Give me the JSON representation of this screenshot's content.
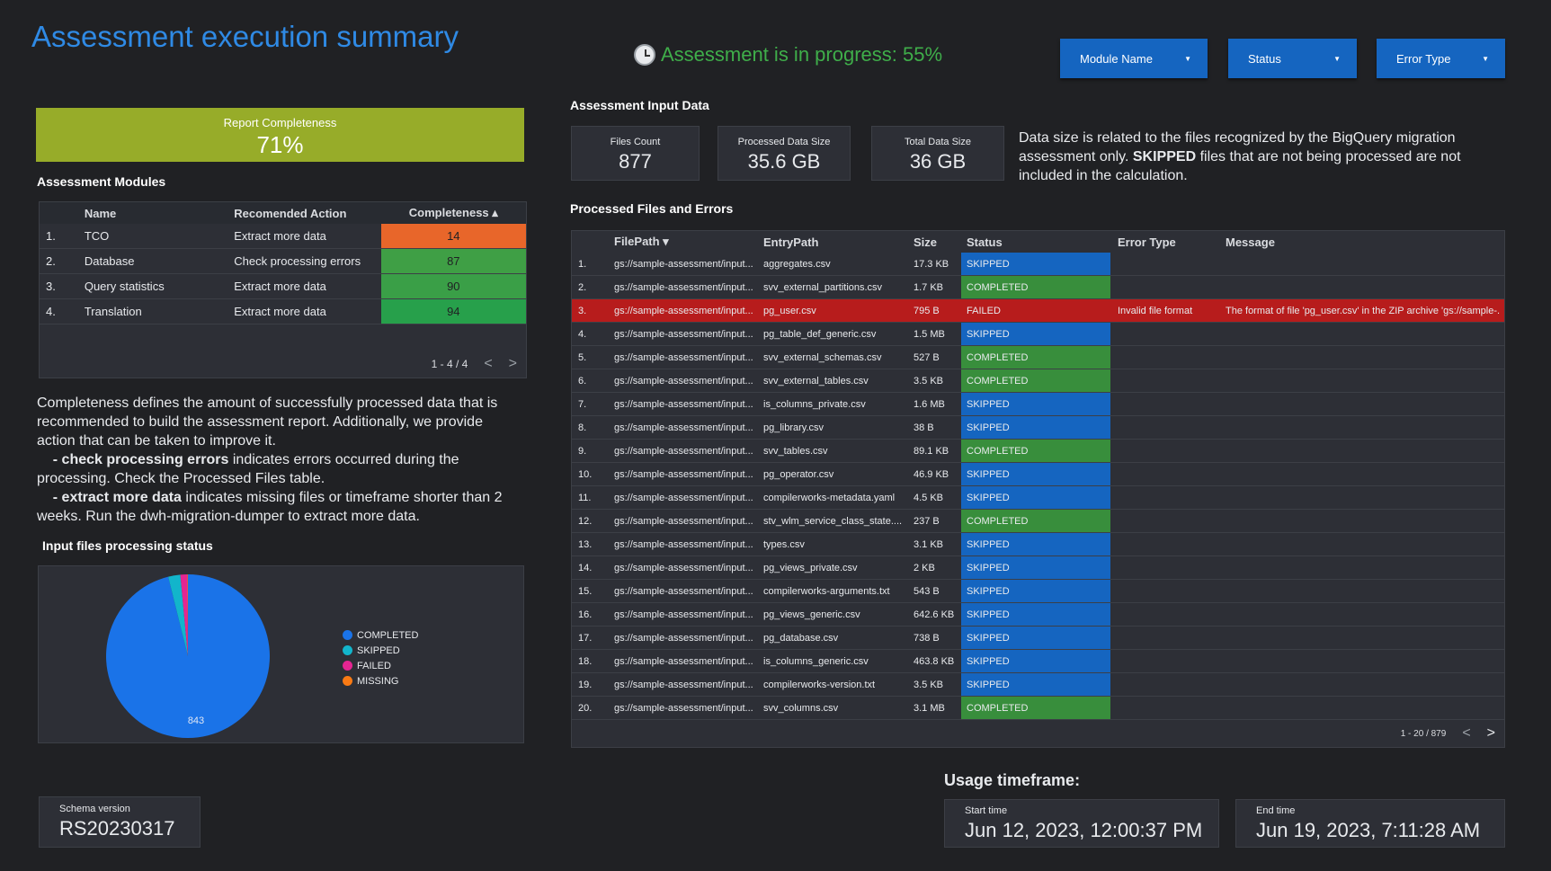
{
  "header": {
    "title": "Assessment execution summary",
    "progress": "Assessment is in progress: 55%",
    "progress_percent": 55,
    "filters": [
      {
        "label": "Module Name"
      },
      {
        "label": "Status"
      },
      {
        "label": "Error Type"
      }
    ]
  },
  "report": {
    "title": "Report Completeness",
    "value": "71%"
  },
  "modules": {
    "title": "Assessment Modules",
    "headers": [
      "Name",
      "Recomended Action",
      "Completeness ▴"
    ],
    "rows": [
      {
        "i": "1.",
        "name": "TCO",
        "action": "Extract more data",
        "value": "14",
        "color": "#e8662a"
      },
      {
        "i": "2.",
        "name": "Database",
        "action": "Check processing errors",
        "value": "87",
        "color": "#3f9f45"
      },
      {
        "i": "3.",
        "name": "Query statistics",
        "action": "Extract more data",
        "value": "90",
        "color": "#3a9f47"
      },
      {
        "i": "4.",
        "name": "Translation",
        "action": "Extract more data",
        "value": "94",
        "color": "#27a04b"
      }
    ],
    "pager": "1 - 4 / 4"
  },
  "explain": {
    "p1": "Completeness defines the amount of successfully processed data that is recommended to build the assessment report. Additionally, we provide action that can be taken to improve it.",
    "b1": "- check processing errors",
    "t1": " indicates errors occurred during the processing. Check the Processed Files table.",
    "b2": "- extract more data",
    "t2": " indicates missing files or timeframe shorter than 2 weeks. Run the dwh-migration-dumper to extract more data."
  },
  "chart_data": {
    "type": "pie",
    "title": "Input files processing status",
    "legend_position": "right",
    "slices": [
      {
        "name": "COMPLETED",
        "value": 843,
        "color": "#1a73e8"
      },
      {
        "name": "SKIPPED",
        "value": 21,
        "color": "#12b5cb"
      },
      {
        "name": "FAILED",
        "value": 12,
        "color": "#e52592"
      },
      {
        "name": "MISSING",
        "value": 1,
        "color": "#f97a14"
      }
    ],
    "data_label": "843"
  },
  "schema": {
    "label": "Schema version",
    "value": "RS20230317"
  },
  "input": {
    "title": "Assessment Input Data",
    "cards": [
      {
        "label": "Files Count",
        "value": "877"
      },
      {
        "label": "Processed Data Size",
        "value": "35.6 GB"
      },
      {
        "label": "Total Data Size",
        "value": "36 GB"
      }
    ],
    "desc_a": "Data size is related to the files recognized by the BigQuery migration assessment only. ",
    "desc_b": "SKIPPED",
    "desc_c": " files that are not being processed are not included in the calculation."
  },
  "files": {
    "title": "Processed Files and Errors",
    "headers": [
      "FilePath ▾",
      "EntryPath",
      "Size",
      "Status",
      "Error Type",
      "Message"
    ],
    "status_colors": {
      "SKIPPED": "#1565c0",
      "COMPLETED": "#388e3c",
      "FAILED": "#b71c1c"
    },
    "rows": [
      [
        "1.",
        "gs://sample-assessment/input...",
        "aggregates.csv",
        "17.3 KB",
        "SKIPPED",
        "",
        ""
      ],
      [
        "2.",
        "gs://sample-assessment/input...",
        "svv_external_partitions.csv",
        "1.7 KB",
        "COMPLETED",
        "",
        ""
      ],
      [
        "3.",
        "gs://sample-assessment/input...",
        "pg_user.csv",
        "795 B",
        "FAILED",
        "Invalid file format",
        "The format of file 'pg_user.csv' in the ZIP archive 'gs://sample-..."
      ],
      [
        "4.",
        "gs://sample-assessment/input...",
        "pg_table_def_generic.csv",
        "1.5 MB",
        "SKIPPED",
        "",
        ""
      ],
      [
        "5.",
        "gs://sample-assessment/input...",
        "svv_external_schemas.csv",
        "527 B",
        "COMPLETED",
        "",
        ""
      ],
      [
        "6.",
        "gs://sample-assessment/input...",
        "svv_external_tables.csv",
        "3.5 KB",
        "COMPLETED",
        "",
        ""
      ],
      [
        "7.",
        "gs://sample-assessment/input...",
        "is_columns_private.csv",
        "1.6 MB",
        "SKIPPED",
        "",
        ""
      ],
      [
        "8.",
        "gs://sample-assessment/input...",
        "pg_library.csv",
        "38 B",
        "SKIPPED",
        "",
        ""
      ],
      [
        "9.",
        "gs://sample-assessment/input...",
        "svv_tables.csv",
        "89.1 KB",
        "COMPLETED",
        "",
        ""
      ],
      [
        "10.",
        "gs://sample-assessment/input...",
        "pg_operator.csv",
        "46.9 KB",
        "SKIPPED",
        "",
        ""
      ],
      [
        "11.",
        "gs://sample-assessment/input...",
        "compilerworks-metadata.yaml",
        "4.5 KB",
        "SKIPPED",
        "",
        ""
      ],
      [
        "12.",
        "gs://sample-assessment/input...",
        "stv_wlm_service_class_state....",
        "237 B",
        "COMPLETED",
        "",
        ""
      ],
      [
        "13.",
        "gs://sample-assessment/input...",
        "types.csv",
        "3.1 KB",
        "SKIPPED",
        "",
        ""
      ],
      [
        "14.",
        "gs://sample-assessment/input...",
        "pg_views_private.csv",
        "2 KB",
        "SKIPPED",
        "",
        ""
      ],
      [
        "15.",
        "gs://sample-assessment/input...",
        "compilerworks-arguments.txt",
        "543 B",
        "SKIPPED",
        "",
        ""
      ],
      [
        "16.",
        "gs://sample-assessment/input...",
        "pg_views_generic.csv",
        "642.6 KB",
        "SKIPPED",
        "",
        ""
      ],
      [
        "17.",
        "gs://sample-assessment/input...",
        "pg_database.csv",
        "738 B",
        "SKIPPED",
        "",
        ""
      ],
      [
        "18.",
        "gs://sample-assessment/input...",
        "is_columns_generic.csv",
        "463.8 KB",
        "SKIPPED",
        "",
        ""
      ],
      [
        "19.",
        "gs://sample-assessment/input...",
        "compilerworks-version.txt",
        "3.5 KB",
        "SKIPPED",
        "",
        ""
      ],
      [
        "20.",
        "gs://sample-assessment/input...",
        "svv_columns.csv",
        "3.1 MB",
        "COMPLETED",
        "",
        ""
      ]
    ],
    "pager": "1 - 20 / 879"
  },
  "usage": {
    "title": "Usage timeframe:",
    "start_label": "Start time",
    "start": "Jun 12, 2023, 12:00:37 PM",
    "end_label": "End time",
    "end": "Jun 19, 2023, 7:11:28 AM"
  }
}
